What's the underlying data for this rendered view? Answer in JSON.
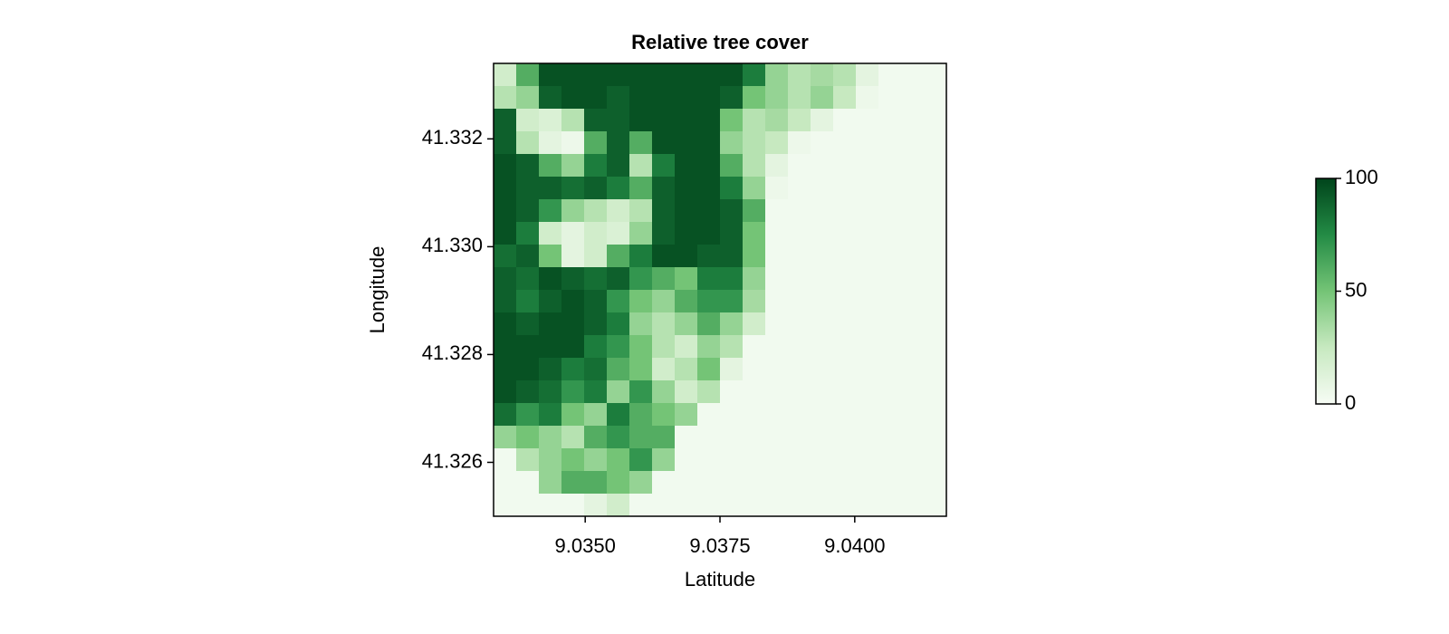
{
  "chart_data": {
    "type": "heatmap",
    "title": "Relative tree cover",
    "x_label": "Latitude",
    "y_label": "Longitude",
    "x": [
      9.03351,
      9.03393,
      9.03435,
      9.03477,
      9.03519,
      9.03561,
      9.03603,
      9.03645,
      9.03687,
      9.03729,
      9.03771,
      9.03813,
      9.03855,
      9.03897,
      9.03939,
      9.03981,
      9.04023,
      9.04065,
      9.04107,
      9.04149
    ],
    "y": [
      41.33319,
      41.33277,
      41.33235,
      41.33193,
      41.33151,
      41.33109,
      41.33067,
      41.33025,
      41.32983,
      41.32941,
      41.32899,
      41.32857,
      41.32815,
      41.32773,
      41.32731,
      41.32689,
      41.32647,
      41.32605,
      41.32563,
      41.32521
    ],
    "z": [
      [
        20,
        60,
        95,
        95,
        95,
        95,
        95,
        95,
        95,
        95,
        95,
        80,
        40,
        30,
        35,
        30,
        10,
        3,
        3,
        3
      ],
      [
        30,
        40,
        90,
        95,
        95,
        90,
        95,
        95,
        95,
        95,
        90,
        50,
        40,
        30,
        40,
        25,
        5,
        3,
        3,
        3
      ],
      [
        90,
        20,
        15,
        30,
        90,
        90,
        95,
        95,
        95,
        95,
        50,
        30,
        35,
        25,
        10,
        3,
        3,
        3,
        3,
        3
      ],
      [
        90,
        30,
        10,
        5,
        60,
        90,
        60,
        95,
        95,
        95,
        40,
        30,
        25,
        5,
        3,
        3,
        3,
        3,
        3,
        3
      ],
      [
        95,
        90,
        60,
        40,
        80,
        90,
        30,
        80,
        95,
        95,
        60,
        30,
        10,
        3,
        3,
        3,
        3,
        3,
        3,
        3
      ],
      [
        95,
        90,
        90,
        85,
        90,
        80,
        60,
        90,
        95,
        95,
        80,
        40,
        5,
        3,
        3,
        3,
        3,
        3,
        3,
        3
      ],
      [
        95,
        90,
        70,
        40,
        30,
        20,
        30,
        90,
        95,
        95,
        90,
        60,
        3,
        3,
        3,
        3,
        3,
        3,
        3,
        3
      ],
      [
        95,
        80,
        20,
        10,
        20,
        15,
        40,
        90,
        95,
        95,
        90,
        50,
        3,
        3,
        3,
        3,
        3,
        3,
        3,
        3
      ],
      [
        85,
        90,
        50,
        10,
        20,
        60,
        80,
        95,
        95,
        90,
        90,
        50,
        3,
        3,
        3,
        3,
        3,
        3,
        3,
        3
      ],
      [
        90,
        85,
        95,
        90,
        85,
        90,
        70,
        60,
        50,
        80,
        80,
        40,
        3,
        3,
        3,
        3,
        3,
        3,
        3,
        3
      ],
      [
        90,
        80,
        90,
        95,
        90,
        70,
        50,
        40,
        60,
        70,
        70,
        35,
        3,
        3,
        3,
        3,
        3,
        3,
        3,
        3
      ],
      [
        95,
        90,
        95,
        95,
        90,
        80,
        40,
        30,
        40,
        60,
        40,
        20,
        3,
        3,
        3,
        3,
        3,
        3,
        3,
        3
      ],
      [
        95,
        95,
        95,
        95,
        80,
        70,
        50,
        30,
        20,
        40,
        30,
        3,
        3,
        3,
        3,
        3,
        3,
        3,
        3,
        3
      ],
      [
        95,
        95,
        90,
        80,
        85,
        60,
        50,
        20,
        30,
        50,
        10,
        3,
        3,
        3,
        3,
        3,
        3,
        3,
        3,
        3
      ],
      [
        95,
        90,
        85,
        70,
        80,
        40,
        70,
        40,
        20,
        30,
        3,
        3,
        3,
        3,
        3,
        3,
        3,
        3,
        3,
        3
      ],
      [
        85,
        70,
        80,
        50,
        40,
        80,
        60,
        50,
        40,
        3,
        3,
        3,
        3,
        3,
        3,
        3,
        3,
        3,
        3,
        3
      ],
      [
        40,
        50,
        40,
        30,
        60,
        70,
        60,
        60,
        3,
        3,
        3,
        3,
        3,
        3,
        3,
        3,
        3,
        3,
        3,
        3
      ],
      [
        3,
        30,
        40,
        50,
        40,
        50,
        70,
        40,
        3,
        3,
        3,
        3,
        3,
        3,
        3,
        3,
        3,
        3,
        3,
        3
      ],
      [
        3,
        3,
        40,
        60,
        60,
        50,
        40,
        3,
        3,
        3,
        3,
        3,
        3,
        3,
        3,
        3,
        3,
        3,
        3,
        3
      ],
      [
        3,
        3,
        3,
        3,
        10,
        20,
        3,
        3,
        3,
        3,
        3,
        3,
        3,
        3,
        3,
        3,
        3,
        3,
        3,
        3
      ]
    ],
    "xlim": [
      9.0333,
      9.0417
    ],
    "ylim": [
      41.325,
      41.3334
    ],
    "xticks": [
      {
        "value": 9.035,
        "label": "9.0350"
      },
      9.0375,
      {
        "value": 9.04,
        "label": "9.0400"
      }
    ],
    "yticks": [
      {
        "value": 41.326,
        "label": "41.326"
      },
      {
        "value": 41.328,
        "label": "41.328"
      },
      {
        "value": 41.33,
        "label": "41.330"
      },
      {
        "value": 41.332,
        "label": "41.332"
      }
    ],
    "colormap": [
      "#f7fcf5",
      "#c7e9c0",
      "#74c476",
      "#238b45",
      "#00441b"
    ],
    "colorbar": {
      "lim": [
        0,
        100
      ],
      "ticks": [
        0,
        50,
        100
      ]
    }
  }
}
